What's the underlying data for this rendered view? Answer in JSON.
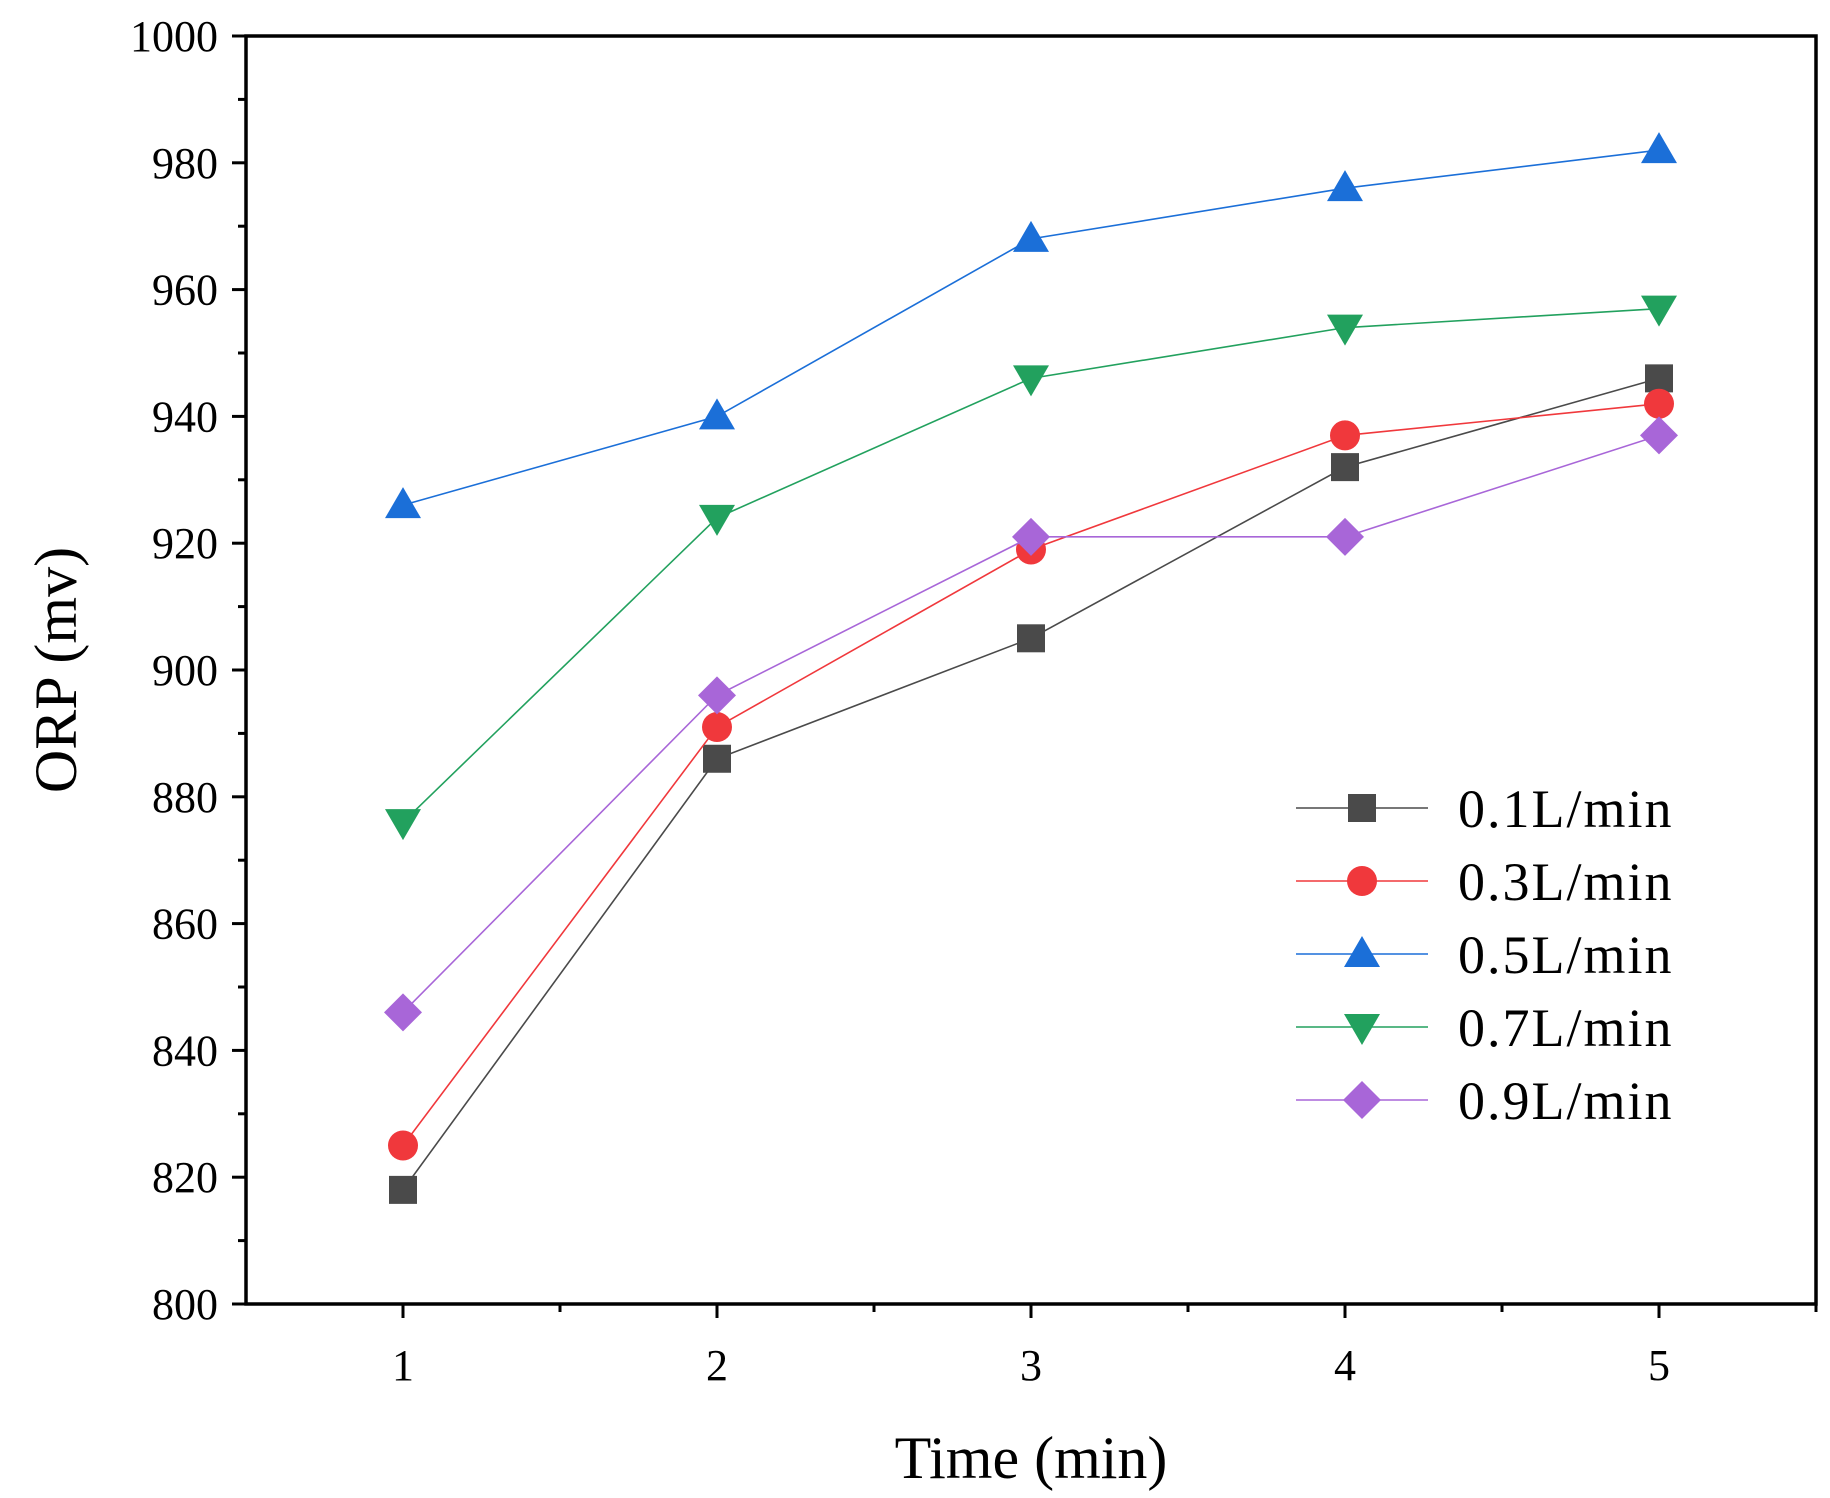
{
  "chart_data": {
    "type": "line",
    "xlabel": "Time (min)",
    "ylabel": "ORP (mv)",
    "x": [
      1,
      2,
      3,
      4,
      5
    ],
    "xlim": [
      0.5,
      5.5
    ],
    "ylim": [
      800,
      1000
    ],
    "x_ticks": [
      1,
      2,
      3,
      4,
      5
    ],
    "y_ticks": [
      800,
      820,
      840,
      860,
      880,
      900,
      920,
      940,
      960,
      980,
      1000
    ],
    "grid": false,
    "legend_position": "right",
    "series": [
      {
        "name": "0.1L/min",
        "values": [
          818,
          886,
          905,
          932,
          946
        ],
        "color": "#4a4a4a",
        "marker": "square"
      },
      {
        "name": "0.3L/min",
        "values": [
          825,
          891,
          919,
          937,
          942
        ],
        "color": "#f0383c",
        "marker": "circle"
      },
      {
        "name": "0.5L/min",
        "values": [
          926,
          940,
          968,
          976,
          982
        ],
        "color": "#1b6fd8",
        "marker": "triangle-up"
      },
      {
        "name": "0.7L/min",
        "values": [
          876,
          924,
          946,
          954,
          957
        ],
        "color": "#22a15e",
        "marker": "triangle-down"
      },
      {
        "name": "0.9L/min",
        "values": [
          846,
          896,
          921,
          921,
          937
        ],
        "color": "#a866d8",
        "marker": "diamond"
      }
    ]
  }
}
